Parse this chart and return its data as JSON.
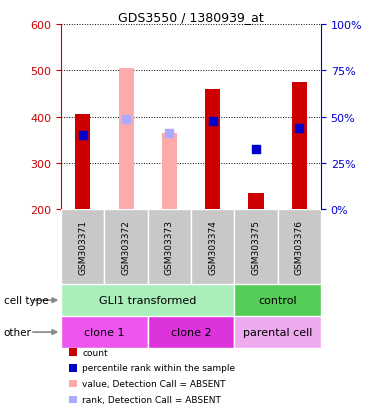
{
  "title": "GDS3550 / 1380939_at",
  "samples": [
    "GSM303371",
    "GSM303372",
    "GSM303373",
    "GSM303374",
    "GSM303375",
    "GSM303376"
  ],
  "bar_values": [
    405,
    505,
    365,
    460,
    235,
    475
  ],
  "bar_colors": [
    "#cc0000",
    "#ffaaaa",
    "#ffaaaa",
    "#cc0000",
    "#cc0000",
    "#cc0000"
  ],
  "dot_values": [
    360,
    395,
    365,
    390,
    330,
    375
  ],
  "dot_colors": [
    "#0000cc",
    "#aaaaff",
    "#aaaaff",
    "#0000cc",
    "#0000cc",
    "#0000cc"
  ],
  "absent_flags": [
    false,
    true,
    true,
    false,
    false,
    false
  ],
  "ylim_left": [
    200,
    600
  ],
  "ylim_right": [
    0,
    100
  ],
  "yticks_left": [
    200,
    300,
    400,
    500,
    600
  ],
  "yticks_right": [
    0,
    25,
    50,
    75,
    100
  ],
  "cell_type_groups": [
    {
      "label": "GLI1 transformed",
      "start": 0,
      "end": 4,
      "color": "#aaeebb"
    },
    {
      "label": "control",
      "start": 4,
      "end": 6,
      "color": "#55cc55"
    }
  ],
  "other_groups": [
    {
      "label": "clone 1",
      "start": 0,
      "end": 2,
      "color": "#ee55ee"
    },
    {
      "label": "clone 2",
      "start": 2,
      "end": 4,
      "color": "#dd33dd"
    },
    {
      "label": "parental cell",
      "start": 4,
      "end": 6,
      "color": "#eeaaee"
    }
  ],
  "left_axis_color": "#cc0000",
  "right_axis_color": "#0000cc",
  "bar_width": 0.35,
  "dot_size": 30,
  "bar_bottom": 200,
  "sample_label_bg": "#c8c8c8",
  "legend_labels": [
    "count",
    "percentile rank within the sample",
    "value, Detection Call = ABSENT",
    "rank, Detection Call = ABSENT"
  ],
  "legend_colors": [
    "#cc0000",
    "#0000cc",
    "#ffaaaa",
    "#aaaaff"
  ]
}
